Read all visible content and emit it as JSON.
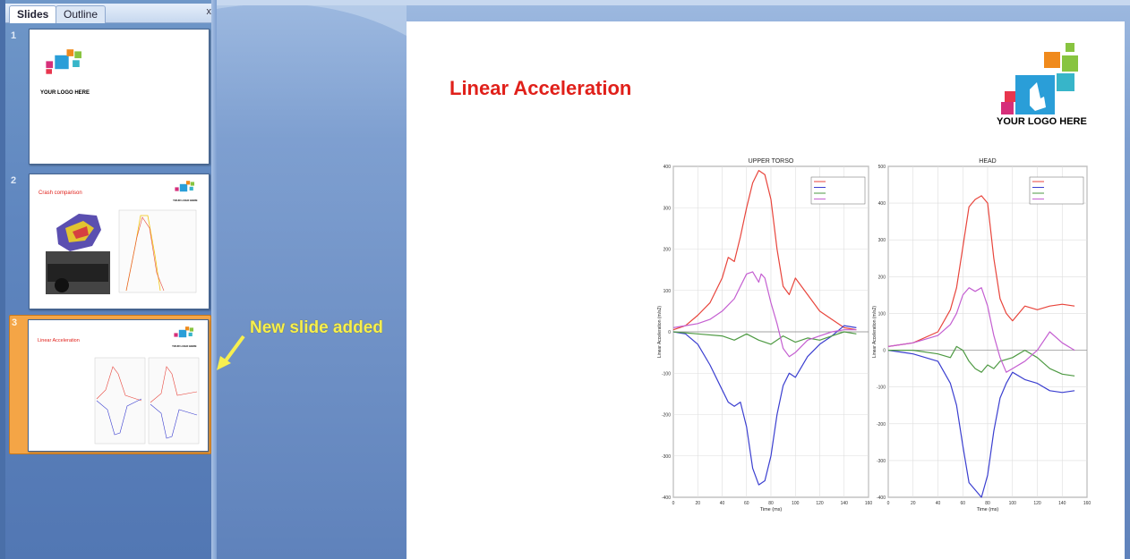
{
  "pane": {
    "tabs": [
      {
        "label": "Slides",
        "active": true
      },
      {
        "label": "Outline",
        "active": false
      }
    ],
    "close_label": "x",
    "thumbnails": [
      {
        "number": "1",
        "logo_text": "YOUR LOGO HERE",
        "title": ""
      },
      {
        "number": "2",
        "logo_text": "YOUR LOGO HERE",
        "title": "Crash comparison"
      },
      {
        "number": "3",
        "logo_text": "YOUR LOGO HERE",
        "title": "Linear Acceleration",
        "selected": true
      }
    ]
  },
  "annotation": {
    "text": "New slide added",
    "color": "#f7ef4f"
  },
  "slide": {
    "title": "Linear Acceleration",
    "title_color": "#e0201a",
    "logo_text": "YOUR LOGO HERE"
  },
  "charts": [
    {
      "title": "UPPER TORSO",
      "xlabel": "Time (ms)",
      "ylabel": "Linear Acceleration (m/s2)",
      "xticks": [
        "0",
        "20",
        "40",
        "60",
        "80",
        "100",
        "120",
        "140",
        "160"
      ],
      "yticks": [
        "400",
        "300",
        "200",
        "100",
        "0",
        "-100",
        "-200",
        "-300",
        "-400"
      ]
    },
    {
      "title": "HEAD",
      "xlabel": "Time (ms)",
      "ylabel": "Linear Acceleration (m/s2)",
      "xticks": [
        "0",
        "20",
        "40",
        "60",
        "80",
        "100",
        "120",
        "140",
        "160"
      ],
      "yticks": [
        "500",
        "400",
        "300",
        "200",
        "100",
        "0",
        "-100",
        "-200",
        "-300",
        "-400"
      ]
    }
  ],
  "chart_data": [
    {
      "type": "line",
      "title": "UPPER TORSO",
      "xlabel": "Time (ms)",
      "ylabel": "Linear Acceleration (m/s2)",
      "xlim": [
        0,
        160
      ],
      "ylim": [
        -400,
        400
      ],
      "grid": true,
      "legend": "top-right",
      "series": [
        {
          "color": "#e8453c",
          "x": [
            0,
            10,
            20,
            30,
            40,
            45,
            50,
            55,
            60,
            65,
            70,
            75,
            80,
            85,
            90,
            95,
            100,
            110,
            120,
            130,
            140,
            150
          ],
          "y": [
            5,
            15,
            40,
            70,
            130,
            180,
            170,
            230,
            300,
            360,
            390,
            380,
            320,
            200,
            110,
            90,
            130,
            90,
            50,
            30,
            10,
            5
          ]
        },
        {
          "color": "#3b3fd0",
          "x": [
            0,
            10,
            20,
            30,
            40,
            45,
            50,
            55,
            60,
            65,
            70,
            75,
            80,
            85,
            90,
            95,
            100,
            110,
            120,
            130,
            140,
            150
          ],
          "y": [
            0,
            -5,
            -30,
            -80,
            -140,
            -170,
            -180,
            -170,
            -230,
            -330,
            -370,
            -360,
            -300,
            -200,
            -130,
            -100,
            -110,
            -60,
            -30,
            -10,
            15,
            10
          ]
        },
        {
          "color": "#4e9a43",
          "x": [
            0,
            20,
            40,
            50,
            60,
            70,
            80,
            90,
            100,
            110,
            120,
            130,
            140,
            150
          ],
          "y": [
            0,
            -5,
            -10,
            -20,
            -5,
            -20,
            -30,
            -10,
            -25,
            -15,
            -20,
            -10,
            0,
            -5
          ]
        },
        {
          "color": "#c45fd1",
          "x": [
            0,
            10,
            20,
            30,
            40,
            50,
            55,
            60,
            65,
            70,
            72,
            75,
            80,
            85,
            90,
            95,
            100,
            110,
            120,
            130,
            140,
            150
          ],
          "y": [
            10,
            15,
            20,
            30,
            50,
            80,
            110,
            140,
            145,
            120,
            140,
            130,
            70,
            20,
            -40,
            -60,
            -50,
            -20,
            -10,
            0,
            5,
            5
          ]
        }
      ]
    },
    {
      "type": "line",
      "title": "HEAD",
      "xlabel": "Time (ms)",
      "ylabel": "Linear Acceleration (m/s2)",
      "xlim": [
        0,
        160
      ],
      "ylim": [
        -400,
        500
      ],
      "grid": true,
      "legend": "top-right",
      "series": [
        {
          "color": "#e8453c",
          "x": [
            0,
            20,
            40,
            50,
            55,
            60,
            65,
            70,
            75,
            80,
            85,
            90,
            95,
            100,
            110,
            120,
            130,
            140,
            150
          ],
          "y": [
            10,
            20,
            50,
            110,
            170,
            280,
            390,
            410,
            420,
            400,
            250,
            140,
            100,
            80,
            120,
            110,
            120,
            125,
            120
          ]
        },
        {
          "color": "#3b3fd0",
          "x": [
            0,
            20,
            40,
            50,
            55,
            60,
            65,
            70,
            75,
            80,
            85,
            90,
            95,
            100,
            110,
            120,
            130,
            140,
            150
          ],
          "y": [
            0,
            -10,
            -30,
            -90,
            -150,
            -260,
            -360,
            -380,
            -400,
            -340,
            -220,
            -130,
            -90,
            -60,
            -80,
            -90,
            -110,
            -115,
            -110
          ]
        },
        {
          "color": "#4e9a43",
          "x": [
            0,
            20,
            40,
            50,
            55,
            60,
            65,
            70,
            75,
            80,
            85,
            90,
            100,
            110,
            120,
            130,
            140,
            150
          ],
          "y": [
            0,
            0,
            -10,
            -20,
            10,
            0,
            -30,
            -50,
            -60,
            -40,
            -50,
            -30,
            -20,
            0,
            -20,
            -50,
            -65,
            -70
          ]
        },
        {
          "color": "#c45fd1",
          "x": [
            0,
            20,
            40,
            50,
            55,
            60,
            65,
            70,
            75,
            80,
            85,
            90,
            95,
            100,
            110,
            120,
            130,
            140,
            150
          ],
          "y": [
            10,
            20,
            40,
            70,
            100,
            150,
            170,
            160,
            170,
            120,
            40,
            -20,
            -60,
            -50,
            -30,
            0,
            50,
            20,
            0
          ]
        }
      ]
    }
  ]
}
